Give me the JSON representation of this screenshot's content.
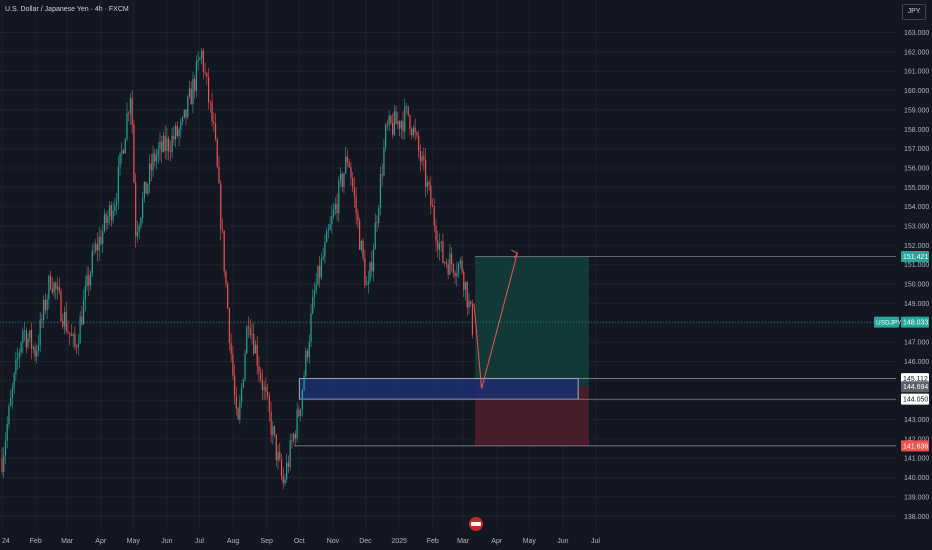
{
  "header": {
    "title": "U.S. Dollar / Japanese Yen · 4h · FXCM",
    "currency_button": "JPY"
  },
  "colors": {
    "background": "#131722",
    "up": "#26a69a",
    "down": "#ef5350",
    "grid": "#1e222d",
    "axis_text": "#b2b5be",
    "zone_blue": "#1c2f6b",
    "zone_green": "#123b3a",
    "zone_red": "#4a1e2a",
    "projection": "#ef5350"
  },
  "chart_data": {
    "type": "candlestick",
    "symbol": "USDJPY",
    "timeframe": "4h",
    "ylim": [
      137.6,
      163.6
    ],
    "y_ticks": [
      138,
      139,
      140,
      141,
      142,
      143,
      144,
      145,
      146,
      147,
      148,
      149,
      150,
      151,
      152,
      153,
      154,
      155,
      156,
      157,
      158,
      159,
      160,
      161,
      162,
      163
    ],
    "x_ticks": [
      "24",
      "Feb",
      "Mar",
      "Apr",
      "May",
      "Jun",
      "Jul",
      "Aug",
      "Sep",
      "Oct",
      "Nov",
      "Dec",
      "2025",
      "Feb",
      "Mar",
      "Apr",
      "May",
      "Jun",
      "Jul"
    ],
    "price_path": [
      {
        "date": "2024-01-01",
        "price": 141.0
      },
      {
        "date": "2024-01-20",
        "price": 147.7
      },
      {
        "date": "2024-02-01",
        "price": 146.5
      },
      {
        "date": "2024-02-15",
        "price": 150.4
      },
      {
        "date": "2024-03-08",
        "price": 146.6
      },
      {
        "date": "2024-03-25",
        "price": 151.4
      },
      {
        "date": "2024-04-15",
        "price": 154.6
      },
      {
        "date": "2024-04-29",
        "price": 160.2
      },
      {
        "date": "2024-05-03",
        "price": 152.8
      },
      {
        "date": "2024-05-20",
        "price": 156.5
      },
      {
        "date": "2024-06-15",
        "price": 158.0
      },
      {
        "date": "2024-07-03",
        "price": 161.9
      },
      {
        "date": "2024-07-15",
        "price": 157.5
      },
      {
        "date": "2024-08-05",
        "price": 142.2
      },
      {
        "date": "2024-08-15",
        "price": 148.5
      },
      {
        "date": "2024-09-16",
        "price": 139.6
      },
      {
        "date": "2024-10-01",
        "price": 143.5
      },
      {
        "date": "2024-10-15",
        "price": 149.5
      },
      {
        "date": "2024-11-15",
        "price": 156.7
      },
      {
        "date": "2024-12-03",
        "price": 149.4
      },
      {
        "date": "2024-12-20",
        "price": 157.9
      },
      {
        "date": "2025-01-10",
        "price": 158.8
      },
      {
        "date": "2025-01-25",
        "price": 155.5
      },
      {
        "date": "2025-02-10",
        "price": 151.3
      },
      {
        "date": "2025-02-28",
        "price": 150.9
      },
      {
        "date": "2025-03-11",
        "price": 147.4
      }
    ],
    "last_price": {
      "label": "USDJPY",
      "value": "148.033",
      "price": 148.033
    },
    "projection": [
      {
        "date": "2025-03-11",
        "price": 149.0
      },
      {
        "date": "2025-03-18",
        "price": 144.6
      },
      {
        "date": "2025-04-20",
        "price": 151.6
      }
    ],
    "zones": {
      "demand": {
        "from_date": "2024-10-01",
        "to_date": "2025-06-15",
        "top": 145.112,
        "bottom": 144.05
      },
      "take_profit": {
        "from_date": "2025-03-12",
        "to_date": "2025-06-25",
        "top": 151.421,
        "bottom": 144.694
      },
      "stop_loss": {
        "from_date": "2025-03-12",
        "to_date": "2025-06-25",
        "top": 144.694,
        "bottom": 141.636
      }
    },
    "price_labels": [
      {
        "value": "151.421",
        "price": 151.421,
        "style": "green"
      },
      {
        "value": "145.112",
        "price": 145.112,
        "style": "white"
      },
      {
        "value": "144.694",
        "price": 144.694,
        "style": "gray"
      },
      {
        "value": "144.050",
        "price": 144.05,
        "style": "white"
      },
      {
        "value": "141.636",
        "price": 141.636,
        "style": "red"
      }
    ]
  }
}
